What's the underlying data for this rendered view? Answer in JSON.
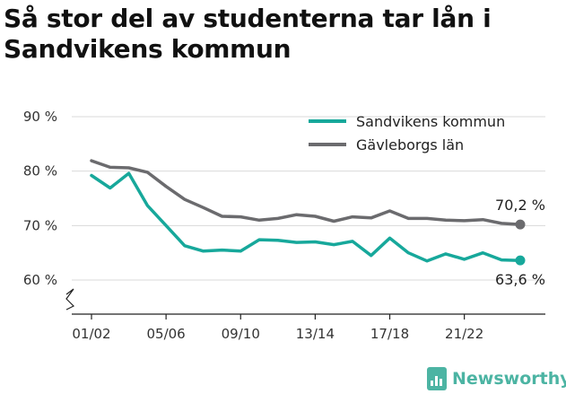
{
  "header": {
    "title": "Så stor del av studenterna tar lån i Sandvikens kommun"
  },
  "brand": {
    "name": "Newsworthy",
    "icon": "bar-chart-logo-icon",
    "color": "#4cb4a3"
  },
  "chart_data": {
    "type": "line",
    "title": "Så stor del av studenterna tar lån i Sandvikens kommun",
    "xlabel": "",
    "ylabel": "",
    "ylim": [
      56,
      90
    ],
    "y_ticks": [
      {
        "value": 90,
        "label": "90 %"
      },
      {
        "value": 80,
        "label": "80 %"
      },
      {
        "value": 70,
        "label": "70 %"
      },
      {
        "value": 60,
        "label": "60 %"
      }
    ],
    "axis_break": true,
    "grid": "horizontal",
    "legend_position": "top-right",
    "x": [
      "01/02",
      "02/03",
      "03/04",
      "04/05",
      "05/06",
      "06/07",
      "07/08",
      "08/09",
      "09/10",
      "10/11",
      "11/12",
      "12/13",
      "13/14",
      "14/15",
      "15/16",
      "16/17",
      "17/18",
      "18/19",
      "19/20",
      "20/21",
      "21/22",
      "22/23",
      "23/24",
      "24/25"
    ],
    "x_tick_labels": [
      "01/02",
      "05/06",
      "09/10",
      "13/14",
      "17/18",
      "21/22"
    ],
    "series": [
      {
        "name": "Sandvikens kommun",
        "color": "#17a89b",
        "values": [
          79.2,
          76.9,
          79.6,
          73.7,
          70.0,
          66.3,
          65.3,
          65.5,
          65.3,
          67.4,
          67.3,
          66.9,
          67.0,
          66.5,
          67.1,
          64.5,
          67.7,
          65.0,
          63.5,
          64.8,
          63.8,
          65.0,
          63.7,
          63.6
        ],
        "end_label": "63,6 %"
      },
      {
        "name": "Gävleborgs län",
        "color": "#6b6b6e",
        "values": [
          81.9,
          80.7,
          80.6,
          79.8,
          77.2,
          74.8,
          73.3,
          71.7,
          71.6,
          71.0,
          71.3,
          72.0,
          71.7,
          70.8,
          71.6,
          71.4,
          72.7,
          71.3,
          71.3,
          71.0,
          70.9,
          71.1,
          70.4,
          70.2
        ],
        "end_label": "70,2 %"
      }
    ]
  }
}
